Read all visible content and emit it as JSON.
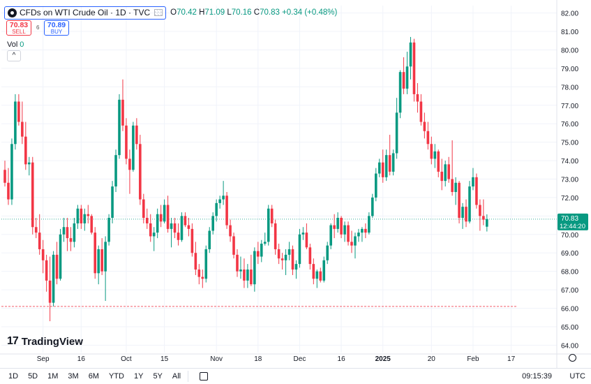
{
  "header": {
    "title": "CFDs on WTI Crude Oil · 1D · TVC",
    "ohlc": {
      "o_label": "O",
      "o": "70.42",
      "h_label": "H",
      "h": "71.09",
      "l_label": "L",
      "l": "70.16",
      "c_label": "C",
      "c": "70.83",
      "change": "+0.34 (+0.48%)"
    }
  },
  "trade": {
    "sell_price": "70.83",
    "sell_label": "SELL",
    "buy_price": "70.89",
    "buy_label": "BUY",
    "spread": "6"
  },
  "volume": {
    "label": "Vol",
    "value": "0"
  },
  "logo": {
    "text": "TradingView",
    "mark": "17"
  },
  "price_tag": {
    "price": "70.83",
    "countdown": "12:44:20"
  },
  "bottom": {
    "ranges": [
      "1D",
      "5D",
      "1M",
      "3M",
      "6M",
      "YTD",
      "1Y",
      "5Y",
      "All"
    ],
    "time": "09:15:39",
    "tz": "UTC"
  },
  "colors": {
    "up": "#089981",
    "down": "#f23645",
    "grid": "#f0f3fa",
    "axis_text": "#131722"
  },
  "chart_data": {
    "type": "candlestick",
    "title": "CFDs on WTI Crude Oil · 1D · TVC",
    "ylim": [
      63.6,
      82.4
    ],
    "yticks": [
      64,
      65,
      66,
      67,
      68,
      69,
      70,
      71,
      72,
      73,
      74,
      75,
      76,
      77,
      78,
      79,
      80,
      81,
      82
    ],
    "xticks": [
      {
        "i": 11,
        "label": "Sep"
      },
      {
        "i": 22,
        "label": "16"
      },
      {
        "i": 35,
        "label": "Oct"
      },
      {
        "i": 46,
        "label": "15"
      },
      {
        "i": 61,
        "label": "Nov"
      },
      {
        "i": 73,
        "label": "18"
      },
      {
        "i": 85,
        "label": "Dec"
      },
      {
        "i": 97,
        "label": "16"
      },
      {
        "i": 109,
        "label": "2025"
      },
      {
        "i": 123,
        "label": "20"
      },
      {
        "i": 135,
        "label": "Feb"
      },
      {
        "i": 146,
        "label": "17"
      }
    ],
    "reference_lines": [
      {
        "value": 70.83,
        "style": "dotted"
      },
      {
        "value": 66.1,
        "style": "dashed"
      }
    ],
    "last_price": 70.83,
    "candles": [
      [
        73.5,
        74.0,
        72.6,
        72.8
      ],
      [
        72.8,
        73.6,
        71.6,
        71.9
      ],
      [
        71.9,
        75.2,
        71.6,
        74.9
      ],
      [
        74.9,
        77.6,
        74.6,
        77.2
      ],
      [
        77.2,
        77.6,
        75.9,
        76.1
      ],
      [
        76.1,
        77.2,
        74.9,
        75.3
      ],
      [
        75.3,
        76.1,
        73.5,
        73.8
      ],
      [
        73.8,
        74.2,
        73.2,
        73.9
      ],
      [
        73.9,
        74.2,
        70.0,
        70.4
      ],
      [
        70.4,
        70.9,
        69.8,
        70.1
      ],
      [
        70.1,
        71.1,
        68.9,
        69.2
      ],
      [
        69.2,
        69.7,
        67.9,
        68.6
      ],
      [
        68.6,
        68.9,
        66.9,
        67.5
      ],
      [
        67.5,
        68.8,
        65.3,
        66.3
      ],
      [
        66.3,
        69.1,
        66.1,
        68.9
      ],
      [
        68.9,
        69.6,
        67.3,
        67.6
      ],
      [
        67.6,
        70.3,
        67.5,
        70.0
      ],
      [
        70.0,
        70.9,
        69.6,
        70.4
      ],
      [
        70.4,
        70.9,
        69.1,
        69.8
      ],
      [
        69.8,
        70.4,
        69.1,
        69.6
      ],
      [
        69.6,
        70.9,
        69.3,
        70.6
      ],
      [
        70.6,
        71.6,
        70.3,
        71.4
      ],
      [
        71.4,
        71.6,
        70.3,
        70.6
      ],
      [
        70.6,
        71.4,
        70.2,
        71.1
      ],
      [
        71.1,
        71.6,
        70.6,
        71.0
      ],
      [
        71.0,
        71.1,
        70.0,
        70.1
      ],
      [
        70.1,
        70.4,
        67.6,
        67.9
      ],
      [
        67.9,
        69.4,
        67.3,
        69.2
      ],
      [
        69.2,
        69.8,
        67.8,
        68.0
      ],
      [
        68.0,
        69.9,
        66.4,
        69.6
      ],
      [
        69.6,
        71.1,
        69.4,
        70.9
      ],
      [
        70.9,
        72.9,
        70.6,
        72.6
      ],
      [
        72.6,
        74.6,
        72.3,
        74.3
      ],
      [
        74.3,
        77.6,
        74.1,
        77.3
      ],
      [
        77.3,
        78.4,
        75.6,
        75.9
      ],
      [
        75.9,
        76.3,
        73.8,
        74.1
      ],
      [
        74.1,
        74.6,
        72.2,
        73.5
      ],
      [
        73.5,
        76.1,
        73.4,
        75.9
      ],
      [
        75.9,
        76.3,
        74.6,
        74.9
      ],
      [
        74.9,
        75.4,
        71.6,
        71.9
      ],
      [
        71.9,
        72.2,
        70.6,
        70.9
      ],
      [
        70.9,
        71.4,
        70.3,
        70.6
      ],
      [
        70.6,
        71.1,
        69.6,
        69.9
      ],
      [
        69.9,
        70.4,
        69.1,
        70.1
      ],
      [
        70.1,
        71.4,
        69.8,
        71.1
      ],
      [
        71.1,
        71.6,
        70.4,
        70.7
      ],
      [
        70.7,
        71.9,
        70.6,
        71.6
      ],
      [
        71.6,
        72.1,
        70.1,
        70.3
      ],
      [
        70.3,
        70.9,
        69.3,
        70.6
      ],
      [
        70.6,
        70.9,
        69.8,
        70.1
      ],
      [
        70.1,
        70.6,
        69.4,
        69.7
      ],
      [
        69.7,
        71.2,
        69.6,
        71.0
      ],
      [
        71.0,
        71.2,
        70.4,
        70.5
      ],
      [
        70.5,
        70.9,
        69.9,
        70.3
      ],
      [
        70.3,
        70.6,
        68.8,
        69.0
      ],
      [
        69.0,
        69.6,
        67.8,
        68.1
      ],
      [
        68.1,
        68.4,
        67.3,
        67.7
      ],
      [
        67.7,
        68.1,
        67.1,
        67.6
      ],
      [
        67.6,
        69.4,
        67.4,
        69.2
      ],
      [
        69.2,
        70.4,
        69.0,
        70.2
      ],
      [
        70.2,
        71.2,
        70.0,
        71.0
      ],
      [
        71.0,
        71.9,
        70.7,
        71.7
      ],
      [
        71.7,
        72.1,
        71.4,
        71.9
      ],
      [
        71.9,
        72.9,
        71.6,
        72.1
      ],
      [
        72.1,
        72.3,
        70.3,
        70.5
      ],
      [
        70.5,
        70.8,
        69.6,
        69.9
      ],
      [
        69.9,
        70.1,
        68.7,
        68.9
      ],
      [
        68.9,
        69.2,
        67.7,
        68.0
      ],
      [
        68.0,
        68.8,
        67.6,
        68.1
      ],
      [
        68.1,
        68.7,
        67.1,
        67.5
      ],
      [
        67.5,
        68.4,
        67.1,
        68.1
      ],
      [
        68.1,
        68.9,
        67.2,
        67.3
      ],
      [
        67.3,
        69.3,
        66.9,
        69.1
      ],
      [
        69.1,
        69.6,
        68.4,
        68.8
      ],
      [
        68.8,
        69.7,
        68.5,
        69.5
      ],
      [
        69.5,
        70.1,
        69.4,
        69.6
      ],
      [
        69.6,
        71.6,
        69.4,
        71.4
      ],
      [
        71.4,
        71.6,
        70.4,
        70.6
      ],
      [
        70.6,
        70.8,
        68.9,
        69.2
      ],
      [
        69.2,
        69.5,
        68.4,
        68.7
      ],
      [
        68.7,
        69.0,
        68.1,
        68.6
      ],
      [
        68.6,
        69.2,
        67.8,
        68.9
      ],
      [
        68.9,
        69.6,
        68.6,
        69.2
      ],
      [
        69.2,
        69.4,
        67.8,
        68.1
      ],
      [
        68.1,
        68.6,
        67.6,
        68.4
      ],
      [
        68.4,
        70.3,
        68.2,
        70.0
      ],
      [
        70.0,
        70.4,
        69.7,
        70.1
      ],
      [
        70.1,
        70.6,
        69.2,
        69.3
      ],
      [
        69.3,
        69.5,
        68.1,
        68.4
      ],
      [
        68.4,
        68.7,
        67.3,
        67.6
      ],
      [
        67.6,
        68.1,
        67.1,
        68.0
      ],
      [
        68.0,
        68.2,
        67.4,
        67.5
      ],
      [
        67.5,
        68.8,
        67.4,
        68.6
      ],
      [
        68.6,
        69.6,
        68.4,
        69.4
      ],
      [
        69.4,
        70.6,
        69.2,
        70.5
      ],
      [
        70.5,
        71.1,
        69.8,
        70.3
      ],
      [
        70.3,
        71.2,
        70.1,
        70.9
      ],
      [
        70.9,
        71.0,
        69.8,
        70.0
      ],
      [
        70.0,
        70.7,
        69.6,
        70.5
      ],
      [
        70.5,
        70.7,
        69.4,
        69.6
      ],
      [
        69.6,
        70.2,
        69.0,
        69.4
      ],
      [
        69.4,
        70.1,
        68.7,
        69.9
      ],
      [
        69.9,
        70.3,
        69.6,
        70.1
      ],
      [
        70.1,
        70.4,
        69.6,
        70.3
      ],
      [
        70.3,
        70.6,
        69.8,
        70.1
      ],
      [
        70.1,
        71.2,
        70.0,
        71.0
      ],
      [
        71.0,
        72.2,
        70.9,
        72.0
      ],
      [
        72.0,
        73.6,
        71.8,
        73.3
      ],
      [
        73.3,
        74.1,
        73.1,
        73.9
      ],
      [
        73.9,
        74.6,
        72.8,
        73.1
      ],
      [
        73.1,
        74.6,
        72.9,
        74.3
      ],
      [
        74.3,
        75.4,
        73.2,
        73.4
      ],
      [
        73.4,
        74.6,
        73.2,
        74.4
      ],
      [
        74.4,
        77.4,
        74.1,
        76.6
      ],
      [
        76.6,
        78.9,
        76.3,
        78.8
      ],
      [
        78.8,
        79.6,
        77.6,
        77.9
      ],
      [
        77.9,
        79.9,
        77.6,
        79.1
      ],
      [
        79.1,
        80.7,
        78.4,
        80.4
      ],
      [
        80.4,
        80.6,
        77.2,
        77.6
      ],
      [
        77.6,
        78.2,
        76.6,
        77.2
      ],
      [
        77.2,
        77.6,
        75.9,
        76.1
      ],
      [
        76.1,
        76.6,
        75.2,
        75.6
      ],
      [
        75.6,
        76.1,
        74.6,
        74.9
      ],
      [
        74.9,
        75.3,
        73.8,
        74.1
      ],
      [
        74.1,
        74.9,
        73.6,
        74.5
      ],
      [
        74.5,
        74.6,
        73.1,
        73.4
      ],
      [
        73.4,
        74.1,
        72.4,
        72.9
      ],
      [
        72.9,
        74.0,
        72.6,
        73.8
      ],
      [
        73.8,
        74.2,
        72.8,
        73.0
      ],
      [
        73.0,
        75.1,
        72.1,
        72.3
      ],
      [
        72.3,
        73.1,
        71.6,
        72.8
      ],
      [
        72.8,
        72.9,
        70.6,
        70.9
      ],
      [
        70.9,
        71.7,
        70.3,
        71.5
      ],
      [
        71.5,
        71.9,
        70.4,
        70.7
      ],
      [
        70.7,
        72.9,
        70.6,
        72.6
      ],
      [
        72.6,
        73.6,
        72.4,
        73.1
      ],
      [
        73.1,
        73.3,
        71.4,
        71.6
      ],
      [
        71.6,
        71.9,
        70.2,
        71.0
      ],
      [
        71.0,
        71.9,
        70.5,
        70.8
      ],
      [
        70.42,
        71.09,
        70.16,
        70.83
      ]
    ]
  }
}
